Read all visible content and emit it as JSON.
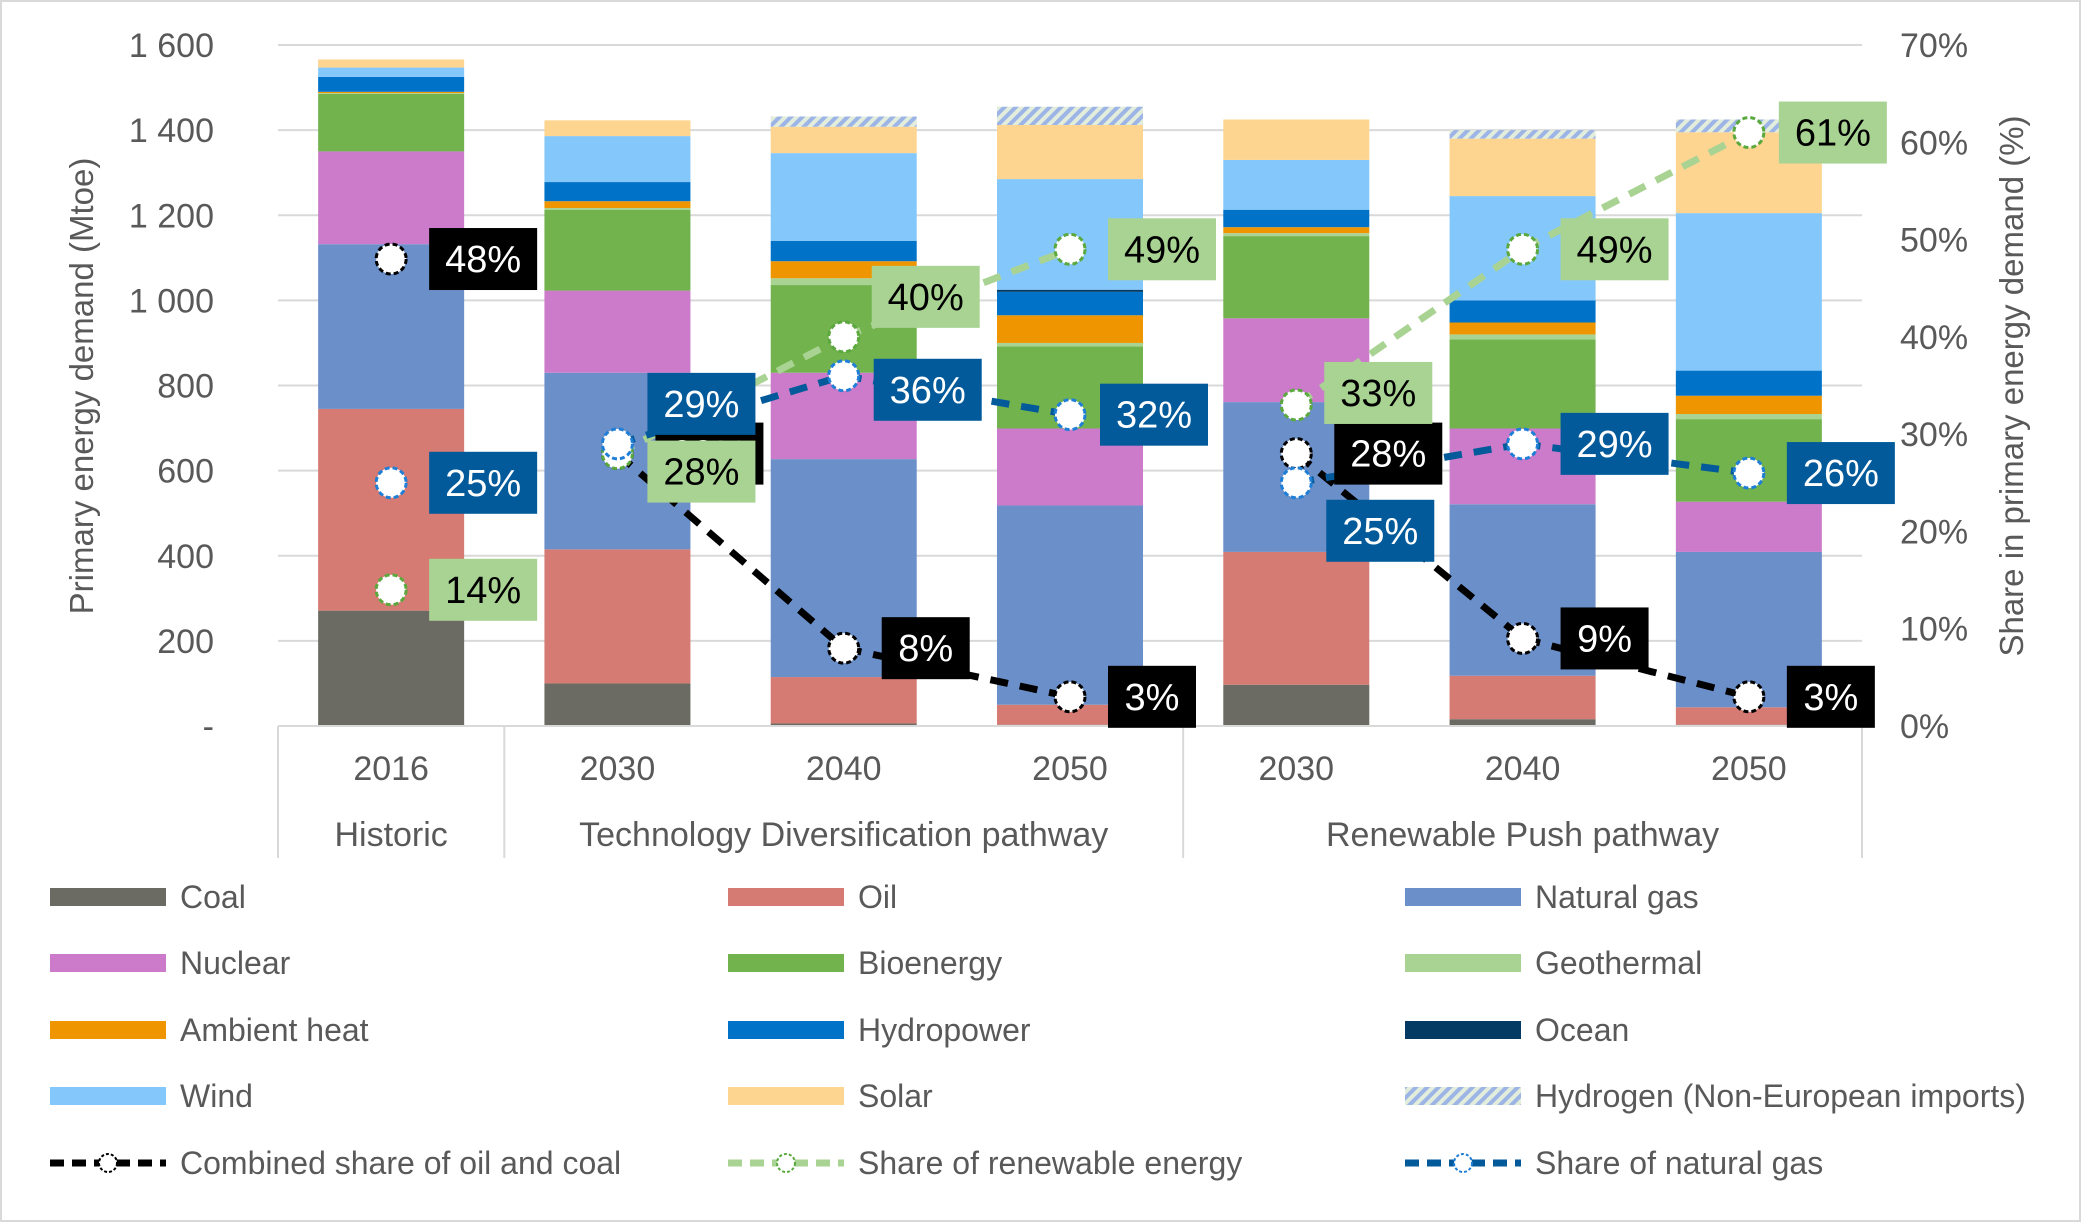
{
  "chart_data": {
    "type": "bar",
    "subtype": "stacked-bar-with-lines",
    "title": "",
    "ylabel": "Primary energy demand (Mtoe)",
    "y2label": "Share in primary energy demand (%)",
    "ylim": [
      0,
      1600
    ],
    "y2lim": [
      0,
      70
    ],
    "yticks": [
      "-",
      "200",
      "400",
      "600",
      "800",
      "1 000",
      "1 200",
      "1 400",
      "1 600"
    ],
    "y2ticks": [
      "0%",
      "10%",
      "20%",
      "30%",
      "40%",
      "50%",
      "60%",
      "70%"
    ],
    "grid": true,
    "legend_position": "bottom",
    "categories": [
      "2016",
      "2030",
      "2040",
      "2050",
      "2030",
      "2040",
      "2050"
    ],
    "groups": [
      {
        "label": "Historic",
        "span": 1
      },
      {
        "label": "Technology Diversification pathway",
        "span": 3
      },
      {
        "label": "Renewable Push pathway",
        "span": 3
      }
    ],
    "series": [
      {
        "name": "Coal",
        "color": "#6b6b63",
        "values": [
          271,
          100,
          6,
          3,
          97,
          16,
          3
        ]
      },
      {
        "name": "Oil",
        "color": "#d67b73",
        "values": [
          474,
          315,
          109,
          47,
          312,
          102,
          41
        ]
      },
      {
        "name": "Natural gas",
        "color": "#6b8fc9",
        "values": [
          387,
          415,
          512,
          468,
          352,
          403,
          365
        ]
      },
      {
        "name": "Nuclear",
        "color": "#cb7bca",
        "values": [
          218,
          193,
          203,
          181,
          197,
          178,
          118
        ]
      },
      {
        "name": "Bioenergy",
        "color": "#72b34e",
        "values": [
          135,
          190,
          206,
          193,
          193,
          209,
          194
        ]
      },
      {
        "name": "Geothermal",
        "color": "#a9d393",
        "values": [
          2,
          4,
          16,
          8,
          7,
          12,
          12
        ]
      },
      {
        "name": "Ambient heat",
        "color": "#ef9500",
        "values": [
          3,
          16,
          40,
          65,
          14,
          28,
          43
        ]
      },
      {
        "name": "Hydropower",
        "color": "#0073c8",
        "values": [
          35,
          45,
          48,
          55,
          41,
          52,
          59
        ]
      },
      {
        "name": "Ocean",
        "color": "#023a63",
        "values": [
          0,
          0,
          0,
          5,
          0,
          0,
          0
        ]
      },
      {
        "name": "Wind",
        "color": "#84c8fb",
        "values": [
          22,
          108,
          206,
          260,
          117,
          245,
          370
        ]
      },
      {
        "name": "Solar",
        "color": "#fdd590",
        "values": [
          19,
          37,
          62,
          127,
          95,
          135,
          190
        ]
      },
      {
        "name": "Hydrogen (Non-European imports)",
        "color": "#9db4e6",
        "pattern": "hatched",
        "values": [
          0,
          0,
          24,
          43,
          0,
          20,
          30
        ]
      }
    ],
    "lines": [
      {
        "name": "Combined share of oil and coal",
        "color": "#000000",
        "label_bg": "#000000",
        "label_fg": "#ffffff",
        "marker_stroke": "#000000",
        "values": [
          48,
          28,
          8,
          3,
          28,
          9,
          3
        ],
        "labels": [
          "48%",
          "28%",
          "8%",
          "3%",
          "28%",
          "9%",
          "3%"
        ]
      },
      {
        "name": "Share of renewable energy",
        "color": "#a9d393",
        "label_bg": "#a9d393",
        "label_fg": "#000000",
        "marker_stroke": "#5aa83e",
        "values": [
          14,
          28,
          40,
          49,
          33,
          49,
          61
        ],
        "labels": [
          "14%",
          "28%",
          "40%",
          "49%",
          "33%",
          "49%",
          "61%"
        ]
      },
      {
        "name": "Share of natural gas",
        "color": "#035a9b",
        "label_bg": "#035a9b",
        "label_fg": "#ffffff",
        "marker_stroke": "#1f7fd6",
        "values": [
          25,
          29,
          36,
          32,
          25,
          29,
          26
        ],
        "labels": [
          "25%",
          "29%",
          "36%",
          "32%",
          "25%",
          "29%",
          "26%"
        ]
      }
    ]
  }
}
